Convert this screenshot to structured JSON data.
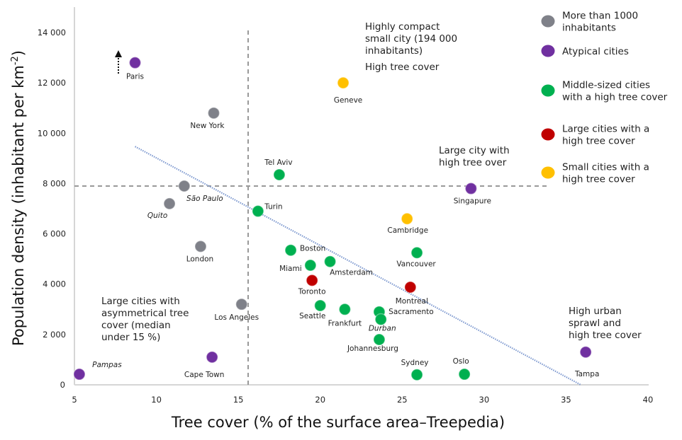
{
  "chart_data": {
    "type": "scatter",
    "title": "",
    "xlabel": "Tree cover (% of the surface area–Treepedia)",
    "ylabel_parts": [
      "Population density (inhabitant per km",
      "-2",
      ")"
    ],
    "xlim": [
      5,
      40
    ],
    "ylim": [
      0,
      14000
    ],
    "x_ticks": [
      5,
      10,
      15,
      20,
      25,
      30,
      35,
      40
    ],
    "x_tick_labels": [
      "5",
      "10",
      "15",
      "20",
      "25",
      "30",
      "35",
      "40"
    ],
    "y_ticks": [
      0,
      2000,
      4000,
      6000,
      8000,
      10000,
      12000,
      14000
    ],
    "y_tick_labels": [
      "0",
      "2 000",
      "4 000",
      "6 000",
      "8 000",
      "10 000",
      "12 000",
      "14 000"
    ],
    "grid": false,
    "legend_position": "top-right",
    "categories": {
      "large": {
        "label": "More than 1000 inhabitants",
        "lines": [
          "More than 1000",
          "inhabitants"
        ],
        "color": "#7f8189"
      },
      "atypical": {
        "label": "Atypical cities",
        "lines": [
          "Atypical cities"
        ],
        "color": "#7030a0"
      },
      "middle": {
        "label": "Middle-sized cities with a high tree cover",
        "lines": [
          "Middle-sized cities",
          "with a high tree cover"
        ],
        "color": "#00b050"
      },
      "large_tree": {
        "label": "Large cities with a high tree cover",
        "lines": [
          "Large cities with a",
          "high tree cover"
        ],
        "color": "#c00000"
      },
      "small_tree": {
        "label": "Small cities with a high tree cover",
        "lines": [
          "Small cities with a",
          "high tree cover"
        ],
        "color": "#ffc000"
      }
    },
    "legend_order": [
      "large",
      "atypical",
      "middle",
      "large_tree",
      "small_tree"
    ],
    "points": [
      {
        "name": "Paris",
        "x": 8.7,
        "y": 12800,
        "cat": "atypical",
        "italic": false
      },
      {
        "name": "New York",
        "x": 13.5,
        "y": 10800,
        "cat": "large",
        "italic": false
      },
      {
        "name": "São Paulo",
        "x": 11.7,
        "y": 7900,
        "cat": "large",
        "italic": true
      },
      {
        "name": "Quito",
        "x": 10.8,
        "y": 7200,
        "cat": "large",
        "italic": true
      },
      {
        "name": "London",
        "x": 12.7,
        "y": 5500,
        "cat": "large",
        "italic": false
      },
      {
        "name": "Los Angeles",
        "x": 15.2,
        "y": 3200,
        "cat": "large",
        "italic": false
      },
      {
        "name": "Pampas",
        "x": 5.3,
        "y": 420,
        "cat": "atypical",
        "italic": true
      },
      {
        "name": "Cape Town",
        "x": 13.4,
        "y": 1100,
        "cat": "atypical",
        "italic": false
      },
      {
        "name": "Tel Aviv",
        "x": 17.5,
        "y": 8350,
        "cat": "middle",
        "italic": false
      },
      {
        "name": "Turin",
        "x": 16.2,
        "y": 6900,
        "cat": "middle",
        "italic": false
      },
      {
        "name": "Geneve",
        "x": 21.4,
        "y": 12000,
        "cat": "small_tree",
        "italic": false
      },
      {
        "name": "Singapure",
        "x": 29.2,
        "y": 7800,
        "cat": "atypical",
        "italic": false
      },
      {
        "name": "Cambridge",
        "x": 25.3,
        "y": 6600,
        "cat": "small_tree",
        "italic": false
      },
      {
        "name": "Vancouver",
        "x": 25.9,
        "y": 5250,
        "cat": "middle",
        "italic": false
      },
      {
        "name": "Boston",
        "x": 18.2,
        "y": 5350,
        "cat": "middle",
        "italic": false
      },
      {
        "name": "Amsterdam",
        "x": 20.6,
        "y": 4900,
        "cat": "middle",
        "italic": false
      },
      {
        "name": "Miami",
        "x": 19.4,
        "y": 4750,
        "cat": "middle",
        "italic": false
      },
      {
        "name": "Toronto",
        "x": 19.5,
        "y": 4150,
        "cat": "large_tree",
        "italic": false
      },
      {
        "name": "Montreal",
        "x": 25.5,
        "y": 3880,
        "cat": "large_tree",
        "italic": false
      },
      {
        "name": "Seattle",
        "x": 20.0,
        "y": 3150,
        "cat": "middle",
        "italic": false
      },
      {
        "name": "Frankfurt",
        "x": 21.5,
        "y": 3000,
        "cat": "middle",
        "italic": false
      },
      {
        "name": "Sacramento",
        "x": 23.6,
        "y": 2900,
        "cat": "middle",
        "italic": false
      },
      {
        "name": "Durban",
        "x": 23.7,
        "y": 2600,
        "cat": "middle",
        "italic": true
      },
      {
        "name": "Johannesburg",
        "x": 23.6,
        "y": 1800,
        "cat": "middle",
        "italic": false
      },
      {
        "name": "Sydney",
        "x": 25.9,
        "y": 400,
        "cat": "middle",
        "italic": false
      },
      {
        "name": "Oslo",
        "x": 28.8,
        "y": 420,
        "cat": "middle",
        "italic": false
      },
      {
        "name": "Tampa",
        "x": 36.2,
        "y": 1300,
        "cat": "atypical",
        "italic": false
      }
    ],
    "trendline": {
      "x": [
        8.7,
        35.9
      ],
      "y": [
        9470,
        0
      ],
      "color": "#7f9ad0"
    },
    "threshold_lines": {
      "vertical_x": 15.6,
      "horizontal_y": 7900,
      "horizontal_x_end": 33.9,
      "color": "#999999"
    },
    "annotations": [
      {
        "lines": [
          "Highly compact",
          "small city (194 000",
          "inhabitants)"
        ]
      },
      {
        "lines": [
          "High tree cover"
        ]
      },
      {
        "lines": [
          "Large city with",
          "high tree over"
        ]
      },
      {
        "lines": [
          "Large cities with",
          "asymmetrical tree",
          "cover (median",
          "under 15 %)"
        ]
      },
      {
        "lines": [
          "High urban",
          "sprawl and",
          "high tree cover"
        ]
      }
    ]
  }
}
